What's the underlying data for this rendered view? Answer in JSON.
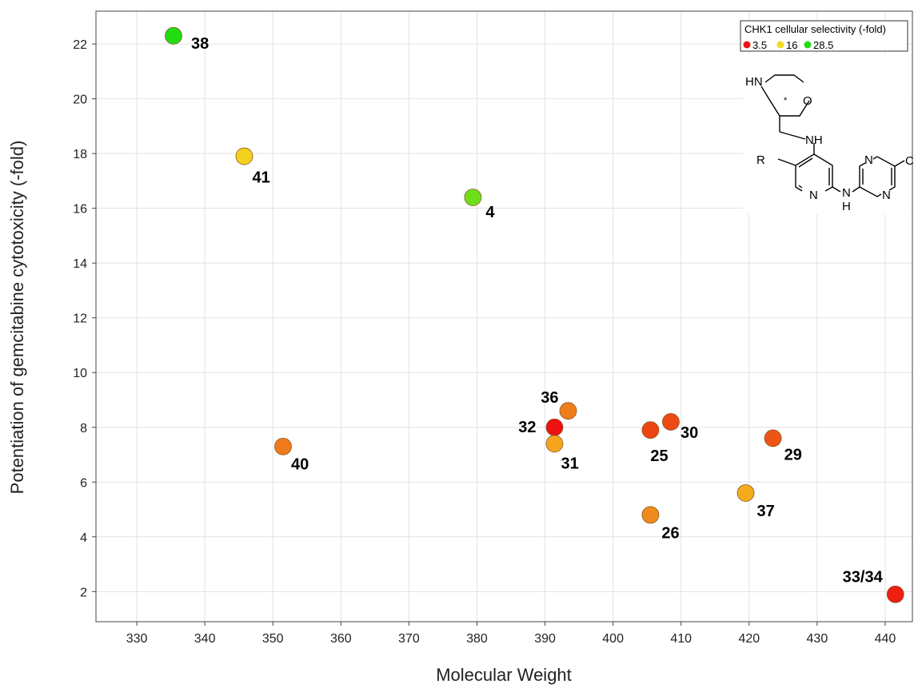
{
  "chart_data": {
    "type": "scatter",
    "xlabel": "Molecular Weight",
    "ylabel": "Potentiation of gemcitabine cytotoxicity (-fold)",
    "xlim": [
      324,
      444
    ],
    "ylim": [
      0.9,
      23.2
    ],
    "xticks": [
      330,
      340,
      350,
      360,
      370,
      380,
      390,
      400,
      410,
      420,
      430,
      440
    ],
    "yticks": [
      2,
      4,
      6,
      8,
      10,
      12,
      14,
      16,
      18,
      20,
      22
    ],
    "grid": true,
    "legend": {
      "title": "CHK1 cellular selectivity (-fold)",
      "placement": "top-right",
      "entries": [
        {
          "label": "3.5",
          "color": "#ee1111"
        },
        {
          "label": "16",
          "color": "#eedd22"
        },
        {
          "label": "28.5",
          "color": "#22dd11"
        }
      ]
    },
    "points": [
      {
        "label": "38",
        "x": 335.4,
        "y": 22.3,
        "color": "#22dd11"
      },
      {
        "label": "41",
        "x": 345.8,
        "y": 17.9,
        "color": "#f2d21c"
      },
      {
        "label": "4",
        "x": 379.4,
        "y": 16.4,
        "color": "#6ee01a"
      },
      {
        "label": "40",
        "x": 351.5,
        "y": 7.3,
        "color": "#f07a1a"
      },
      {
        "label": "32",
        "x": 391.4,
        "y": 8.0,
        "color": "#ee1111"
      },
      {
        "label": "36",
        "x": 393.4,
        "y": 8.6,
        "color": "#f07d1c"
      },
      {
        "label": "31",
        "x": 391.4,
        "y": 7.4,
        "color": "#f5a41c"
      },
      {
        "label": "25",
        "x": 405.5,
        "y": 7.9,
        "color": "#ee4412"
      },
      {
        "label": "30",
        "x": 408.5,
        "y": 8.2,
        "color": "#ee4a14"
      },
      {
        "label": "29",
        "x": 423.5,
        "y": 7.6,
        "color": "#ee5414"
      },
      {
        "label": "26",
        "x": 405.5,
        "y": 4.8,
        "color": "#f18a1c"
      },
      {
        "label": "37",
        "x": 419.5,
        "y": 5.6,
        "color": "#f5aa1c"
      },
      {
        "label": "33/34",
        "x": 441.5,
        "y": 1.9,
        "color": "#ee1e11"
      }
    ]
  },
  "structure": {
    "atoms": {
      "hn": "HN",
      "o": "O",
      "star": "*",
      "nh_top": "NH",
      "r": "R",
      "cn": "CN",
      "n_pyr": "N",
      "nh_bottom_n": "N",
      "nh_bottom_h": "H",
      "n_pz_top": "N",
      "n_pz_bottom": "N"
    }
  }
}
